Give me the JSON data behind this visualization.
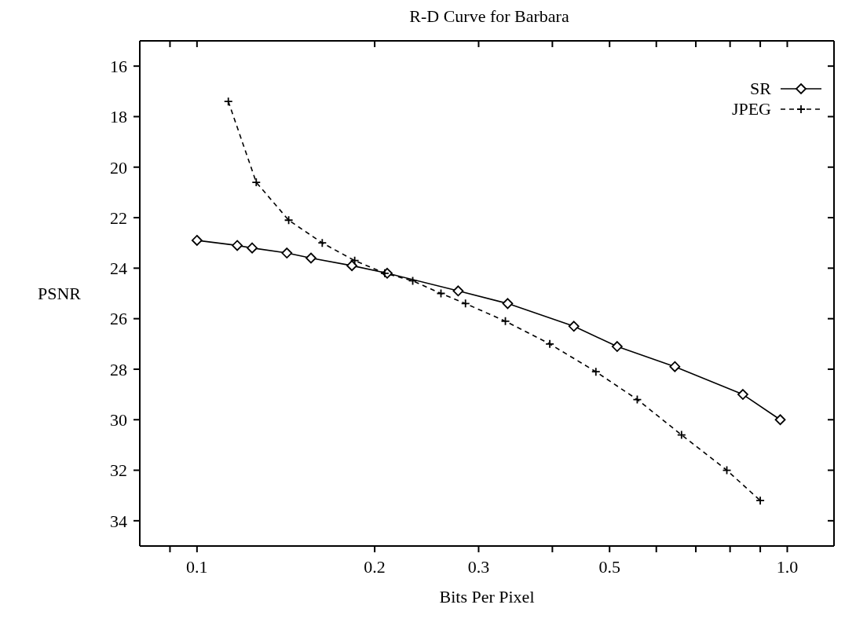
{
  "chart_data": {
    "type": "line",
    "title": "R-D Curve for Barbara",
    "xlabel": "Bits Per Pixel",
    "ylabel": "PSNR",
    "log": "x",
    "legend": "top right",
    "xlim": [
      0.08,
      1.2
    ],
    "ylim": [
      35,
      15
    ],
    "xticks": [
      {
        "value": 0.09,
        "label": null
      },
      0.1,
      0.2,
      0.3,
      {
        "value": 0.4,
        "label": null
      },
      0.5,
      {
        "value": 0.6,
        "label": null
      },
      {
        "value": 0.7,
        "label": null
      },
      {
        "value": 0.8,
        "label": null
      },
      {
        "value": 0.9,
        "label": null
      },
      {
        "value": 1.0,
        "label": "1.0"
      }
    ],
    "yticks": [
      16,
      18,
      20,
      22,
      24,
      26,
      28,
      30,
      32,
      34
    ],
    "series": [
      {
        "name": "SR",
        "color": "#000000",
        "marker": "diamond",
        "line_style": "solid",
        "x": [
          0.1,
          0.117,
          0.124,
          0.142,
          0.156,
          0.183,
          0.21,
          0.277,
          0.336,
          0.435,
          0.515,
          0.645,
          0.841,
          0.973
        ],
        "values": [
          22.9,
          23.1,
          23.2,
          23.4,
          23.6,
          23.9,
          24.2,
          24.9,
          25.4,
          26.3,
          27.1,
          27.9,
          29.0,
          30.0
        ]
      },
      {
        "name": "JPEG",
        "color": "#000000",
        "marker": "cross",
        "line_style": "dashed",
        "x": [
          0.113,
          0.126,
          0.143,
          0.163,
          0.185,
          0.208,
          0.232,
          0.259,
          0.285,
          0.333,
          0.396,
          0.474,
          0.557,
          0.662,
          0.79,
          0.9
        ],
        "values": [
          17.4,
          20.6,
          22.1,
          23.0,
          23.7,
          24.2,
          24.5,
          25.0,
          25.4,
          26.1,
          27.0,
          28.1,
          29.2,
          30.6,
          32.0,
          33.2
        ]
      }
    ]
  }
}
